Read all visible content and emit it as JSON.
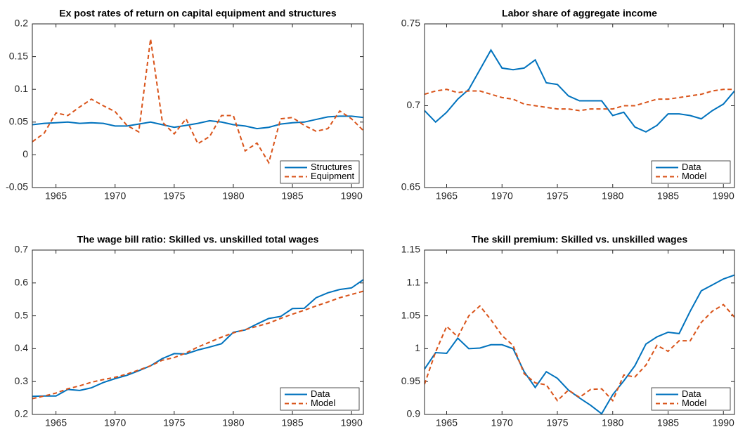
{
  "chart_data": [
    {
      "type": "line",
      "title": "Ex post rates of return on capital equipment and structures",
      "x": [
        1963,
        1964,
        1965,
        1966,
        1967,
        1968,
        1969,
        1970,
        1971,
        1972,
        1973,
        1974,
        1975,
        1976,
        1977,
        1978,
        1979,
        1980,
        1981,
        1982,
        1983,
        1984,
        1985,
        1986,
        1987,
        1988,
        1989,
        1990,
        1991
      ],
      "series": [
        {
          "name": "Structures",
          "color": "#0072bd",
          "dash": false,
          "values": [
            0.046,
            0.048,
            0.049,
            0.05,
            0.048,
            0.049,
            0.048,
            0.044,
            0.044,
            0.047,
            0.05,
            0.046,
            0.042,
            0.045,
            0.048,
            0.052,
            0.05,
            0.046,
            0.044,
            0.04,
            0.042,
            0.047,
            0.049,
            0.05,
            0.054,
            0.058,
            0.059,
            0.059,
            0.057
          ]
        },
        {
          "name": "Equipment",
          "color": "#d95319",
          "dash": true,
          "values": [
            0.02,
            0.033,
            0.064,
            0.06,
            0.073,
            0.085,
            0.075,
            0.066,
            0.045,
            0.035,
            0.177,
            0.05,
            0.032,
            0.055,
            0.017,
            0.028,
            0.06,
            0.06,
            0.006,
            0.018,
            -0.012,
            0.055,
            0.057,
            0.045,
            0.036,
            0.04,
            0.067,
            0.055,
            0.037
          ]
        }
      ],
      "xlim": [
        1963,
        1991
      ],
      "xticks": [
        1965,
        1970,
        1975,
        1980,
        1985,
        1990
      ],
      "ylim": [
        -0.05,
        0.2
      ],
      "yticks": [
        -0.05,
        0,
        0.05,
        0.1,
        0.15,
        0.2
      ],
      "legend": "lower right",
      "grid": false
    },
    {
      "type": "line",
      "title": "Labor share of aggregate income",
      "x": [
        1963,
        1964,
        1965,
        1966,
        1967,
        1968,
        1969,
        1970,
        1971,
        1972,
        1973,
        1974,
        1975,
        1976,
        1977,
        1978,
        1979,
        1980,
        1981,
        1982,
        1983,
        1984,
        1985,
        1986,
        1987,
        1988,
        1989,
        1990,
        1991
      ],
      "series": [
        {
          "name": "Data",
          "color": "#0072bd",
          "dash": false,
          "values": [
            0.697,
            0.69,
            0.696,
            0.704,
            0.71,
            0.722,
            0.734,
            0.723,
            0.722,
            0.723,
            0.728,
            0.714,
            0.713,
            0.706,
            0.703,
            0.703,
            0.703,
            0.694,
            0.696,
            0.687,
            0.684,
            0.688,
            0.695,
            0.695,
            0.694,
            0.692,
            0.697,
            0.701,
            0.709
          ]
        },
        {
          "name": "Model",
          "color": "#d95319",
          "dash": true,
          "values": [
            0.707,
            0.709,
            0.71,
            0.708,
            0.709,
            0.709,
            0.707,
            0.705,
            0.704,
            0.701,
            0.7,
            0.699,
            0.698,
            0.698,
            0.697,
            0.698,
            0.698,
            0.698,
            0.7,
            0.7,
            0.702,
            0.704,
            0.704,
            0.705,
            0.706,
            0.707,
            0.709,
            0.71,
            0.71
          ]
        }
      ],
      "xlim": [
        1963,
        1991
      ],
      "xticks": [
        1965,
        1970,
        1975,
        1980,
        1985,
        1990
      ],
      "ylim": [
        0.65,
        0.75
      ],
      "yticks": [
        0.65,
        0.7,
        0.75
      ],
      "legend": "lower right",
      "grid": false
    },
    {
      "type": "line",
      "title": "The wage bill ratio: Skilled vs. unskilled total wages",
      "x": [
        1963,
        1964,
        1965,
        1966,
        1967,
        1968,
        1969,
        1970,
        1971,
        1972,
        1973,
        1974,
        1975,
        1976,
        1977,
        1978,
        1979,
        1980,
        1981,
        1982,
        1983,
        1984,
        1985,
        1986,
        1987,
        1988,
        1989,
        1990,
        1991
      ],
      "series": [
        {
          "name": "Data",
          "color": "#0072bd",
          "dash": false,
          "values": [
            0.255,
            0.256,
            0.256,
            0.276,
            0.273,
            0.281,
            0.297,
            0.309,
            0.319,
            0.333,
            0.348,
            0.37,
            0.385,
            0.384,
            0.396,
            0.405,
            0.415,
            0.45,
            0.457,
            0.475,
            0.492,
            0.498,
            0.522,
            0.523,
            0.555,
            0.57,
            0.58,
            0.585,
            0.61
          ]
        },
        {
          "name": "Model",
          "color": "#d95319",
          "dash": true,
          "values": [
            0.248,
            0.256,
            0.265,
            0.278,
            0.287,
            0.298,
            0.306,
            0.313,
            0.323,
            0.335,
            0.348,
            0.365,
            0.373,
            0.387,
            0.405,
            0.42,
            0.435,
            0.448,
            0.458,
            0.468,
            0.478,
            0.492,
            0.505,
            0.517,
            0.53,
            0.542,
            0.555,
            0.565,
            0.575
          ]
        }
      ],
      "xlim": [
        1963,
        1991
      ],
      "xticks": [
        1965,
        1970,
        1975,
        1980,
        1985,
        1990
      ],
      "ylim": [
        0.2,
        0.7
      ],
      "yticks": [
        0.2,
        0.3,
        0.4,
        0.5,
        0.6,
        0.7
      ],
      "legend": "lower right",
      "grid": false
    },
    {
      "type": "line",
      "title": "The skill premium: Skilled vs. unskilled wages",
      "x": [
        1963,
        1964,
        1965,
        1966,
        1967,
        1968,
        1969,
        1970,
        1971,
        1972,
        1973,
        1974,
        1975,
        1976,
        1977,
        1978,
        1979,
        1980,
        1981,
        1982,
        1983,
        1984,
        1985,
        1986,
        1987,
        1988,
        1989,
        1990,
        1991
      ],
      "series": [
        {
          "name": "Data",
          "color": "#0072bd",
          "dash": false,
          "values": [
            0.969,
            0.994,
            0.993,
            1.016,
            1.0,
            1.001,
            1.006,
            1.006,
            1.0,
            0.965,
            0.941,
            0.965,
            0.955,
            0.937,
            0.925,
            0.914,
            0.901,
            0.93,
            0.951,
            0.974,
            1.007,
            1.018,
            1.025,
            1.023,
            1.057,
            1.088,
            1.097,
            1.106,
            1.112
          ]
        },
        {
          "name": "Model",
          "color": "#d95319",
          "dash": true,
          "values": [
            0.946,
            0.995,
            1.034,
            1.018,
            1.05,
            1.065,
            1.044,
            1.02,
            1.005,
            0.962,
            0.948,
            0.945,
            0.921,
            0.937,
            0.926,
            0.938,
            0.939,
            0.921,
            0.96,
            0.957,
            0.975,
            1.005,
            0.996,
            1.012,
            1.012,
            1.04,
            1.057,
            1.067,
            1.048
          ]
        }
      ],
      "xlim": [
        1963,
        1991
      ],
      "xticks": [
        1965,
        1970,
        1975,
        1980,
        1985,
        1990
      ],
      "ylim": [
        0.9,
        1.15
      ],
      "yticks": [
        0.9,
        0.95,
        1,
        1.05,
        1.1,
        1.15
      ],
      "legend": "lower right",
      "grid": false
    }
  ]
}
